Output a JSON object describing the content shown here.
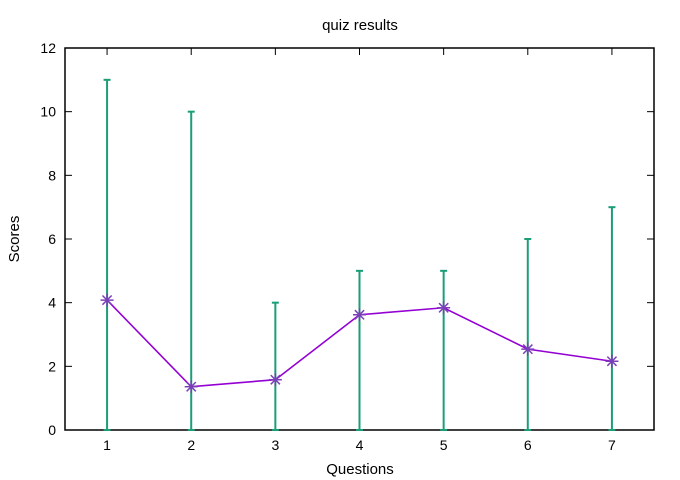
{
  "chart_data": {
    "type": "line",
    "title": "quiz results",
    "xlabel": "Questions",
    "ylabel": "Scores",
    "xlim": [
      0.5,
      7.5
    ],
    "ylim": [
      0,
      12
    ],
    "x_ticks": [
      1,
      2,
      3,
      4,
      5,
      6,
      7
    ],
    "y_ticks": [
      0,
      2,
      4,
      6,
      8,
      10,
      12
    ],
    "grid": false,
    "legend": "none",
    "series": [
      {
        "x": [
          1,
          2,
          3,
          4,
          5,
          6,
          7
        ],
        "y": [
          4.08,
          1.36,
          1.58,
          3.62,
          3.84,
          2.54,
          2.16
        ],
        "error_low": [
          0,
          0,
          0,
          0,
          0,
          0,
          0
        ],
        "error_high": [
          11,
          10,
          4,
          5,
          5,
          6,
          7
        ],
        "marker": "asterisk",
        "line_color": "#9400d3",
        "marker_color": "#7b3fb8",
        "errorbar_color": "#1b9e77"
      }
    ]
  }
}
